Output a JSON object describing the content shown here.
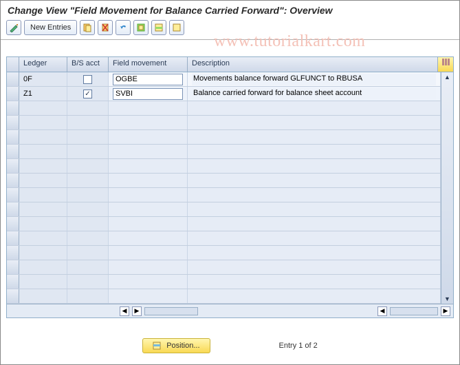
{
  "title": "Change View \"Field Movement for Balance Carried Forward\": Overview",
  "toolbar": {
    "new_entries": "New Entries"
  },
  "watermark": "www.tutorialkart.com",
  "columns": {
    "ledger": "Ledger",
    "bs": "B/S acct",
    "fm": "Field movement",
    "desc": "Description"
  },
  "rows": [
    {
      "ledger": "0F",
      "bs": false,
      "fm": "OGBE",
      "desc": "Movements balance forward GLFUNCT to RBUSA"
    },
    {
      "ledger": "Z1",
      "bs": true,
      "fm": "SVBI",
      "desc": "Balance carried forward for balance sheet account"
    }
  ],
  "empty_row_count": 14,
  "footer": {
    "position_label": "Position...",
    "entry_label": "Entry 1 of 2"
  },
  "colors": {
    "header_grad_top": "#e9eef6",
    "header_grad_bot": "#cfd9e9",
    "border": "#8faec9",
    "watermark": "#f4c1b7",
    "yellow_top": "#fff6b0",
    "yellow_bot": "#f9d954"
  },
  "hscroll": {
    "left_track_width": 78,
    "right_track_width": 70
  }
}
